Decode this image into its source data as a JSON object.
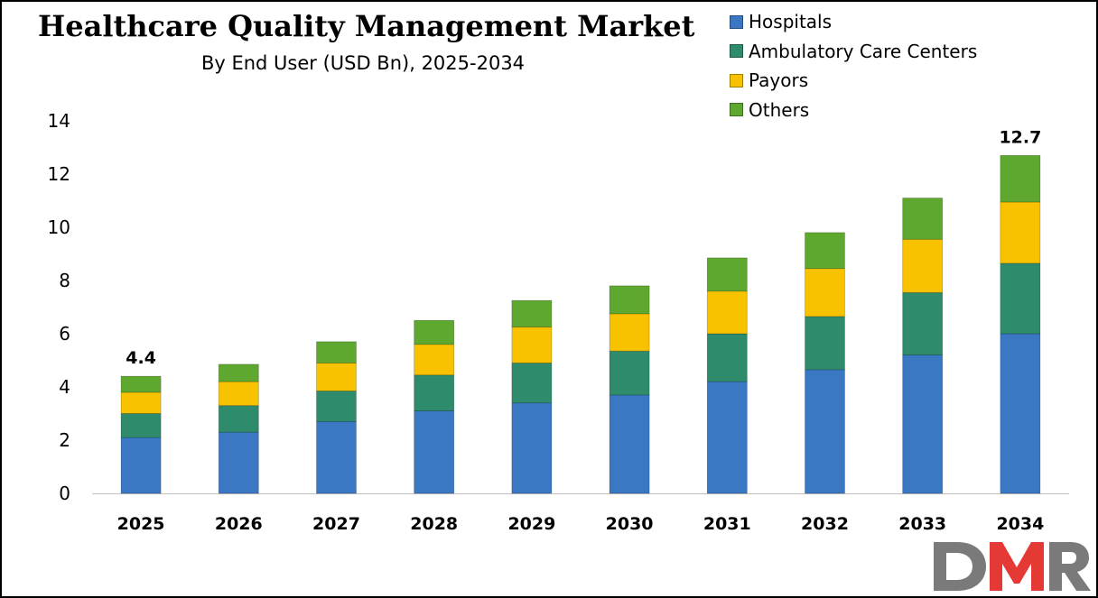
{
  "chart_data": {
    "type": "bar",
    "stacked": true,
    "title": "Healthcare Quality Management Market",
    "subtitle": "By End User (USD Bn), 2025-2034",
    "categories": [
      "2025",
      "2026",
      "2027",
      "2028",
      "2029",
      "2030",
      "2031",
      "2032",
      "2033",
      "2034"
    ],
    "series": [
      {
        "name": "Hospitals",
        "color": "#3a78c4",
        "values": [
          2.1,
          2.3,
          2.7,
          3.1,
          3.4,
          3.7,
          4.2,
          4.65,
          5.2,
          6.0
        ]
      },
      {
        "name": "Ambulatory Care Centers",
        "color": "#2e8b6c",
        "values": [
          0.9,
          1.0,
          1.15,
          1.35,
          1.5,
          1.65,
          1.8,
          2.0,
          2.35,
          2.65
        ]
      },
      {
        "name": "Payors",
        "color": "#f9c200",
        "values": [
          0.8,
          0.9,
          1.05,
          1.15,
          1.35,
          1.4,
          1.6,
          1.8,
          2.0,
          2.3
        ]
      },
      {
        "name": "Others",
        "color": "#5fa82f",
        "values": [
          0.6,
          0.65,
          0.8,
          0.9,
          1.0,
          1.05,
          1.25,
          1.35,
          1.55,
          1.75
        ]
      }
    ],
    "data_labels": {
      "2025": "4.4",
      "2034": "12.7"
    },
    "ylim": [
      0,
      14
    ],
    "yticks": [
      "0",
      "2",
      "4",
      "6",
      "8",
      "10",
      "12",
      "14"
    ],
    "legend": "top-right",
    "grid": false
  },
  "branding": {
    "logo_text": "DMR",
    "logo_colors": [
      "#7a7a7a",
      "#e53935"
    ]
  }
}
